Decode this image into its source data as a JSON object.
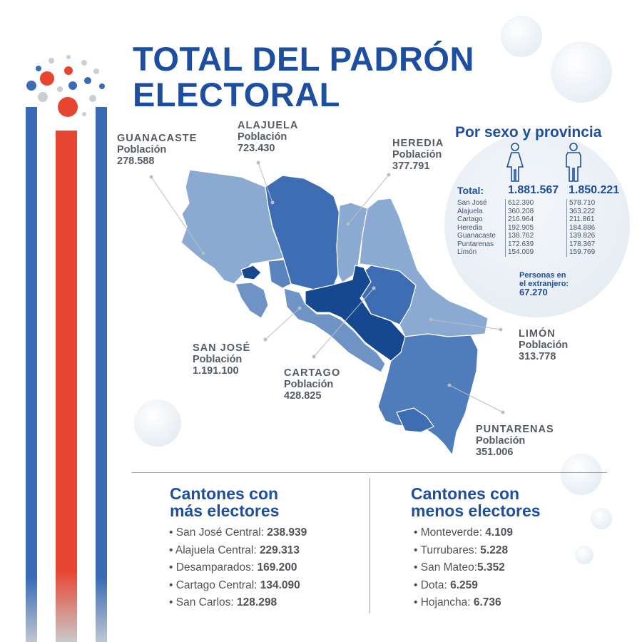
{
  "title": {
    "line1": "TOTAL DEL PADRÓN",
    "line2": "ELECTORAL"
  },
  "colors": {
    "dark_blue": "#1d4ea0",
    "mid_blue": "#3a6bb6",
    "light_blue": "#8aaad2",
    "red": "#e84432"
  },
  "provinces": [
    {
      "name": "GUANACASTE",
      "label": "Población",
      "value": "278.588"
    },
    {
      "name": "ALAJUELA",
      "label": "Población",
      "value": "723.430"
    },
    {
      "name": "HEREDIA",
      "label": "Población",
      "value": "377.791"
    },
    {
      "name": "SAN JOSÉ",
      "label": "Población",
      "value": "1.191.100"
    },
    {
      "name": "CARTAGO",
      "label": "Población",
      "value": "428.825"
    },
    {
      "name": "LIMÓN",
      "label": "Población",
      "value": "313.778"
    },
    {
      "name": "PUNTARENAS",
      "label": "Población",
      "value": "351.006"
    }
  ],
  "by_sex": {
    "heading": "Por sexo y provincia",
    "female_icon": "female-icon",
    "male_icon": "male-icon",
    "total_label": "Total:",
    "total_female": "1.881.567",
    "total_male": "1.850.221",
    "rows": [
      {
        "province": "San José",
        "female": "612.390",
        "male": "578.710"
      },
      {
        "province": "Alajuela",
        "female": "360.208",
        "male": "363.222"
      },
      {
        "province": "Cartago",
        "female": "216.964",
        "male": "211.861"
      },
      {
        "province": "Heredia",
        "female": "192.905",
        "male": "184.886"
      },
      {
        "province": "Guanacaste",
        "female": "138.762",
        "male": "139.826"
      },
      {
        "province": "Puntarenas",
        "female": "172.639",
        "male": "178.367"
      },
      {
        "province": "Limón",
        "female": "154.009",
        "male": "159.769"
      }
    ],
    "abroad_line1": "Personas en",
    "abroad_line2": "el extranjero:",
    "abroad_value": "67.270"
  },
  "most": {
    "title_line1": "Cantones con",
    "title_line2": "más electores",
    "items": [
      {
        "name": "San José Central: ",
        "value": "238.939"
      },
      {
        "name": "Alajuela Central: ",
        "value": "229.313"
      },
      {
        "name": "Desamparados: ",
        "value": "169.200"
      },
      {
        "name": "Cartago Central: ",
        "value": "134.090"
      },
      {
        "name": "San Carlos: ",
        "value": "128.298"
      }
    ]
  },
  "least": {
    "title_line1": "Cantones con",
    "title_line2": "menos electores",
    "items": [
      {
        "name": "Monteverde: ",
        "value": "4.109"
      },
      {
        "name": "Turrubares: ",
        "value": "5.228"
      },
      {
        "name": "San Mateo:",
        "value": "5.352"
      },
      {
        "name": "Dota: ",
        "value": "6.259"
      },
      {
        "name": "Hojancha: ",
        "value": "6.736"
      }
    ]
  }
}
